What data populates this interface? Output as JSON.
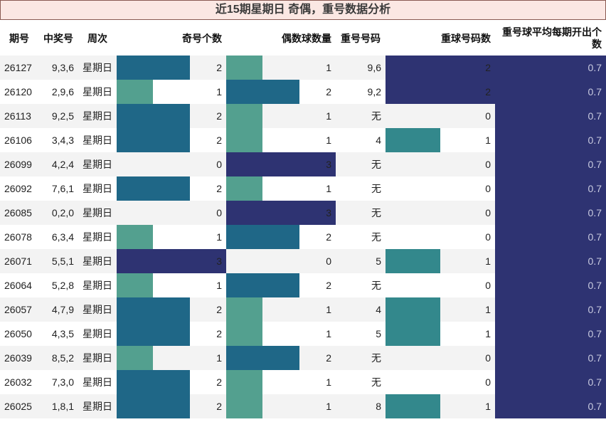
{
  "title": "近15期星期日 奇偶，重号数据分析",
  "headers": {
    "period": "期号",
    "numbers": "中奖号",
    "weekday": "周次",
    "odd_count": "奇号个数",
    "even_count": "偶数球数量",
    "repeat_numbers": "重号号码",
    "repeat_count": "重球号码数",
    "repeat_avg": "重号球平均每期开出个数"
  },
  "colors": {
    "level1": "#53a08f",
    "level2": "#1f6787",
    "level3": "#2e3372",
    "repeat1": "#33888c"
  },
  "rows": [
    {
      "period": "26127",
      "numbers": "9,3,6",
      "weekday": "星期日",
      "odd": "2",
      "even": "1",
      "repeat": "9,6",
      "repeat_count": "2",
      "avg": "0.7"
    },
    {
      "period": "26120",
      "numbers": "2,9,6",
      "weekday": "星期日",
      "odd": "1",
      "even": "2",
      "repeat": "9,2",
      "repeat_count": "2",
      "avg": "0.7"
    },
    {
      "period": "26113",
      "numbers": "9,2,5",
      "weekday": "星期日",
      "odd": "2",
      "even": "1",
      "repeat": "无",
      "repeat_count": "0",
      "avg": "0.7"
    },
    {
      "period": "26106",
      "numbers": "3,4,3",
      "weekday": "星期日",
      "odd": "2",
      "even": "1",
      "repeat": "4",
      "repeat_count": "1",
      "avg": "0.7"
    },
    {
      "period": "26099",
      "numbers": "4,2,4",
      "weekday": "星期日",
      "odd": "0",
      "even": "3",
      "repeat": "无",
      "repeat_count": "0",
      "avg": "0.7"
    },
    {
      "period": "26092",
      "numbers": "7,6,1",
      "weekday": "星期日",
      "odd": "2",
      "even": "1",
      "repeat": "无",
      "repeat_count": "0",
      "avg": "0.7"
    },
    {
      "period": "26085",
      "numbers": "0,2,0",
      "weekday": "星期日",
      "odd": "0",
      "even": "3",
      "repeat": "无",
      "repeat_count": "0",
      "avg": "0.7"
    },
    {
      "period": "26078",
      "numbers": "6,3,4",
      "weekday": "星期日",
      "odd": "1",
      "even": "2",
      "repeat": "无",
      "repeat_count": "0",
      "avg": "0.7"
    },
    {
      "period": "26071",
      "numbers": "5,5,1",
      "weekday": "星期日",
      "odd": "3",
      "even": "0",
      "repeat": "5",
      "repeat_count": "1",
      "avg": "0.7"
    },
    {
      "period": "26064",
      "numbers": "5,2,8",
      "weekday": "星期日",
      "odd": "1",
      "even": "2",
      "repeat": "无",
      "repeat_count": "0",
      "avg": "0.7"
    },
    {
      "period": "26057",
      "numbers": "4,7,9",
      "weekday": "星期日",
      "odd": "2",
      "even": "1",
      "repeat": "4",
      "repeat_count": "1",
      "avg": "0.7"
    },
    {
      "period": "26050",
      "numbers": "4,3,5",
      "weekday": "星期日",
      "odd": "2",
      "even": "1",
      "repeat": "5",
      "repeat_count": "1",
      "avg": "0.7"
    },
    {
      "period": "26039",
      "numbers": "8,5,2",
      "weekday": "星期日",
      "odd": "1",
      "even": "2",
      "repeat": "无",
      "repeat_count": "0",
      "avg": "0.7"
    },
    {
      "period": "26032",
      "numbers": "7,3,0",
      "weekday": "星期日",
      "odd": "2",
      "even": "1",
      "repeat": "无",
      "repeat_count": "0",
      "avg": "0.7"
    },
    {
      "period": "26025",
      "numbers": "1,8,1",
      "weekday": "星期日",
      "odd": "2",
      "even": "1",
      "repeat": "8",
      "repeat_count": "1",
      "avg": "0.7"
    }
  ]
}
